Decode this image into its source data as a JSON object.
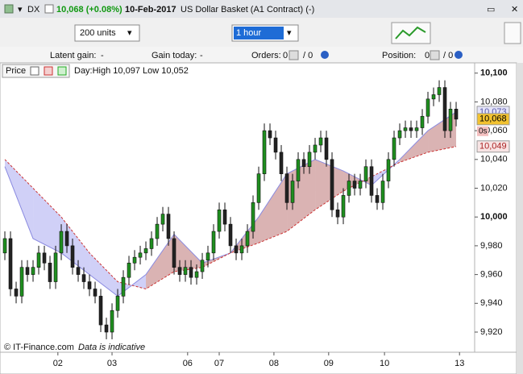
{
  "toolbar": {
    "symbol": "DX",
    "quote": "10,068 (+0.08%)",
    "date": "10-Feb-2017",
    "name": "US Dollar Basket (A1 Contract) (-)",
    "units": "200 units",
    "interval": "1 hour"
  },
  "info_bar": {
    "latent_gain_label": "Latent gain:",
    "latent_gain": "-",
    "gain_today_label": "Gain today:",
    "gain_today": "-",
    "orders_label": "Orders:",
    "orders": "0",
    "orders_sep": "/ 0",
    "position_label": "Position:",
    "position": "0",
    "position_sep": "/ 0"
  },
  "chart_data": {
    "type": "candlestick",
    "legend_title": "Price",
    "day_range": "Day:High 10,097 Low 10,052",
    "footer_credit": "© IT-Finance.com",
    "footer_note": "Data is indicative",
    "up_color": "#1f8f1f",
    "down_color": "#222222",
    "open": [
      9975,
      9985,
      9950,
      9945,
      9965,
      9960,
      9965,
      9975,
      9968,
      9955,
      9975,
      9990,
      9980,
      9965,
      9960,
      9955,
      9950,
      9945,
      9925,
      9920,
      9935,
      9945,
      9958,
      9968,
      9972,
      9975,
      9978,
      9985,
      9995,
      10002,
      9985,
      9965,
      9960,
      9965,
      9958,
      9962,
      9970,
      9975,
      9990,
      10005,
      9995,
      9980,
      9975,
      9980,
      9990,
      10010,
      10030,
      10060,
      10055,
      10045,
      10030,
      10010,
      10025,
      10040,
      10035,
      10045,
      10050,
      10055,
      10040,
      10005,
      10000,
      10015,
      10025,
      10020,
      10025,
      10035,
      10015,
      10010,
      10025,
      10040,
      10055,
      10060,
      10062,
      10060,
      10062,
      10070,
      10082,
      10085,
      10090,
      10060,
      10075
    ],
    "high": [
      9990,
      9990,
      9955,
      9970,
      9970,
      9970,
      9980,
      9980,
      9973,
      9980,
      9995,
      9995,
      9985,
      9970,
      9965,
      9960,
      9955,
      9950,
      9930,
      9940,
      9950,
      9963,
      9973,
      9977,
      9980,
      9983,
      9990,
      10000,
      10007,
      10007,
      9990,
      9970,
      9970,
      9970,
      9967,
      9975,
      9980,
      9995,
      10010,
      10010,
      10000,
      9985,
      9985,
      9995,
      10015,
      10035,
      10065,
      10065,
      10060,
      10050,
      10035,
      10030,
      10045,
      10045,
      10050,
      10055,
      10060,
      10060,
      10045,
      10010,
      10020,
      10030,
      10030,
      10030,
      10040,
      10040,
      10020,
      10030,
      10045,
      10060,
      10065,
      10067,
      10067,
      10067,
      10075,
      10087,
      10090,
      10095,
      10095,
      10080,
      10080
    ],
    "low": [
      9970,
      9945,
      9940,
      9940,
      9955,
      9955,
      9960,
      9963,
      9950,
      9950,
      9970,
      9975,
      9960,
      9955,
      9950,
      9945,
      9940,
      9920,
      9915,
      9915,
      9930,
      9940,
      9953,
      9963,
      9967,
      9970,
      9973,
      9980,
      9990,
      9980,
      9960,
      9955,
      9955,
      9953,
      9953,
      9957,
      9965,
      9970,
      9985,
      9990,
      9975,
      9970,
      9970,
      9975,
      9985,
      10005,
      10025,
      10050,
      10040,
      10025,
      10005,
      10005,
      10020,
      10030,
      10030,
      10040,
      10045,
      10035,
      10000,
      9995,
      9995,
      10010,
      10015,
      10015,
      10020,
      10010,
      10005,
      10005,
      10020,
      10035,
      10050,
      10055,
      10055,
      10055,
      10057,
      10065,
      10077,
      10080,
      10055,
      10055,
      10063
    ],
    "close": [
      9985,
      9950,
      9945,
      9965,
      9960,
      9965,
      9975,
      9968,
      9955,
      9975,
      9990,
      9980,
      9965,
      9960,
      9955,
      9950,
      9945,
      9925,
      9920,
      9935,
      9945,
      9958,
      9968,
      9972,
      9975,
      9978,
      9985,
      9995,
      10002,
      9985,
      9965,
      9960,
      9965,
      9958,
      9962,
      9970,
      9975,
      9990,
      10005,
      9995,
      9980,
      9975,
      9980,
      9990,
      10010,
      10030,
      10060,
      10055,
      10045,
      10030,
      10010,
      10025,
      10040,
      10035,
      10045,
      10050,
      10055,
      10040,
      10005,
      10000,
      10015,
      10025,
      10020,
      10025,
      10035,
      10015,
      10010,
      10025,
      10040,
      10055,
      10060,
      10062,
      10060,
      10062,
      10070,
      10082,
      10085,
      10090,
      10060,
      10075,
      10068
    ],
    "bands": [
      {
        "color": "#8a8ae0",
        "fill": "#c8c8f6",
        "x": [
          0,
          5,
          10,
          15,
          20,
          25,
          30,
          35,
          40,
          45,
          50,
          55,
          60,
          65,
          70,
          75,
          80
        ],
        "values": [
          10035,
          9985,
          9975,
          9960,
          9945,
          9960,
          9988,
          9968,
          9975,
          10000,
          10030,
          10040,
          10032,
          10022,
          10040,
          10060,
          10073
        ]
      },
      {
        "color": "#cc3333",
        "fill": "#d4a6a6",
        "x": [
          0,
          5,
          10,
          15,
          20,
          25,
          30,
          35,
          40,
          45,
          50,
          55,
          60,
          65,
          70,
          75,
          80
        ],
        "values": [
          10040,
          10020,
          10000,
          9975,
          9955,
          9950,
          9962,
          9965,
          9975,
          9982,
          9990,
          10005,
          10018,
          10028,
          10038,
          10045,
          10049
        ]
      }
    ],
    "markers": [
      {
        "value": 10073,
        "label": "10,073",
        "color": "#e4e4f8",
        "text_color": "#5555aa"
      },
      {
        "value": 10068,
        "label": "10,068",
        "color": "#f2c230",
        "text_color": "#000000"
      },
      {
        "value": 10049,
        "label": "10,049",
        "color": "#f8e4e4",
        "text_color": "#aa2222"
      }
    ],
    "countdown": "0s",
    "xlim": [
      -0.86,
      83.14
    ],
    "xticks": [
      {
        "value": 9.4,
        "label": "02"
      },
      {
        "value": 19,
        "label": "03"
      },
      {
        "value": 32.4,
        "label": "06"
      },
      {
        "value": 38,
        "label": "07"
      },
      {
        "value": 47.7,
        "label": "08"
      },
      {
        "value": 57.4,
        "label": "09"
      },
      {
        "value": 67.3,
        "label": "10"
      },
      {
        "value": 80.6,
        "label": "13"
      }
    ],
    "ylim": [
      9906,
      10106
    ],
    "yticks": [
      {
        "value": 9920,
        "label": "9,920"
      },
      {
        "value": 9940,
        "label": "9,940"
      },
      {
        "value": 9960,
        "label": "9,960"
      },
      {
        "value": 9980,
        "label": "9,980"
      },
      {
        "value": 10000,
        "label": "10,000"
      },
      {
        "value": 10020,
        "label": "10,020"
      },
      {
        "value": 10040,
        "label": "10,040"
      },
      {
        "value": 10060,
        "label": "10,060"
      },
      {
        "value": 10080,
        "label": "10,080"
      },
      {
        "value": 10100,
        "label": "10,100"
      }
    ]
  }
}
